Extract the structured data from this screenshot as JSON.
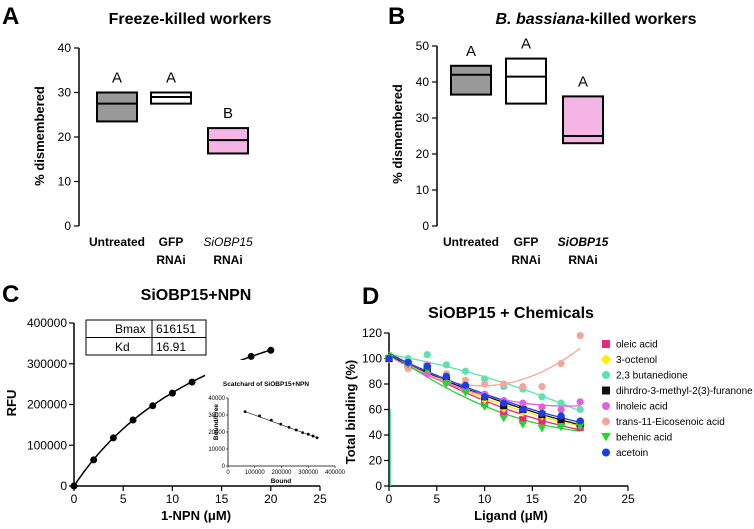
{
  "panels": {
    "a": "A",
    "b": "B",
    "c": "C",
    "d": "D"
  },
  "chart_data": [
    {
      "type": "box",
      "title": "Freeze-killed workers",
      "ylabel": "% dismembered",
      "ylim": [
        0,
        40
      ],
      "yticks": [
        "0",
        "10",
        "20",
        "30",
        "40"
      ],
      "categories": [
        {
          "l1": "Untreated",
          "l2": "",
          "italic": false
        },
        {
          "l1": "GFP",
          "l2": "RNAi",
          "italic": false
        },
        {
          "l1": "SiOBP15",
          "l2": "RNAi",
          "italic": true
        }
      ],
      "boxes": [
        {
          "q1": 23.5,
          "median": 27.5,
          "q3": 30,
          "color": "#999999",
          "letter": "A"
        },
        {
          "q1": 27.5,
          "median": 29,
          "q3": 30,
          "color": "#ffffff",
          "letter": "A"
        },
        {
          "q1": 16.3,
          "median": 19.3,
          "q3": 22,
          "color": "#f4b4e6",
          "letter": "B"
        }
      ]
    },
    {
      "type": "box",
      "title_italic": "B. bassiana",
      "title_rest": "-killed workers",
      "ylabel": "% dismembered",
      "ylim": [
        0,
        50
      ],
      "yticks": [
        "0",
        "10",
        "20",
        "30",
        "40",
        "50"
      ],
      "categories": [
        {
          "l1": "Untreated",
          "l2": "",
          "italic": false
        },
        {
          "l1": "GFP",
          "l2": "RNAi",
          "italic": false
        },
        {
          "l1": "SiOBP15",
          "l2": "RNAi",
          "italic": true
        }
      ],
      "boxes": [
        {
          "q1": 36.5,
          "median": 42,
          "q3": 44.5,
          "color": "#999999",
          "letter": "A"
        },
        {
          "q1": 34,
          "median": 41.5,
          "q3": 46.5,
          "color": "#ffffff",
          "letter": "A"
        },
        {
          "q1": 23,
          "median": 25,
          "q3": 36,
          "color": "#f4b4e6",
          "letter": "A"
        }
      ]
    },
    {
      "type": "line",
      "title": "SiOBP15+NPN",
      "xlabel": "1-NPN (μM)",
      "ylabel": "RFU",
      "xlim": [
        0,
        25
      ],
      "ylim": [
        0,
        400000
      ],
      "xticks": [
        "0",
        "5",
        "10",
        "15",
        "20",
        "25"
      ],
      "yticks": [
        "0",
        "100000",
        "200000",
        "300000",
        "400000"
      ],
      "x": [
        0,
        2,
        4,
        6,
        8,
        10,
        12,
        14,
        16,
        18,
        20
      ],
      "y": [
        0,
        64000,
        118000,
        162000,
        197000,
        228000,
        255000,
        279000,
        300000,
        318000,
        333000
      ],
      "table": [
        {
          "label": "Bmax",
          "value": "616151"
        },
        {
          "label": "Kd",
          "value": "16.91"
        }
      ],
      "inset": {
        "title": "Scatchard of SiOBP15+NPN",
        "xlabel": "Bound",
        "ylabel": "Bound/Free",
        "xlim": [
          0,
          400000
        ],
        "ylim": [
          0,
          40000
        ],
        "xticks": [
          "0",
          "100000",
          "200000",
          "300000",
          "400000"
        ],
        "yticks": [
          "0",
          "10000",
          "20000",
          "30000",
          "40000"
        ],
        "x": [
          64000,
          118000,
          162000,
          197000,
          228000,
          255000,
          279000,
          300000,
          318000,
          333000
        ],
        "y": [
          32000,
          29500,
          27000,
          24600,
          22800,
          21200,
          19600,
          18700,
          17600,
          16600
        ]
      }
    },
    {
      "type": "scatter",
      "title": "SiOBP15 + Chemicals",
      "xlabel": "Ligand (μM)",
      "ylabel": "Total binding (%)",
      "xlim": [
        0,
        25
      ],
      "ylim": [
        0,
        120
      ],
      "xticks": [
        "0",
        "5",
        "10",
        "15",
        "20",
        "25"
      ],
      "yticks": [
        "0",
        "20",
        "40",
        "60",
        "80",
        "100",
        "120"
      ],
      "x": [
        0,
        2,
        4,
        6,
        8,
        10,
        12,
        14,
        16,
        18,
        20
      ],
      "series": [
        {
          "name": "oleic acid",
          "color": "#e8287a",
          "marker": "square",
          "values": [
            100,
            96,
            94,
            83,
            76,
            65,
            57,
            52,
            51,
            49,
            46
          ]
        },
        {
          "name": "3-octenol",
          "color": "#ffee00",
          "marker": "diamond",
          "values": [
            100,
            96,
            92,
            82,
            75,
            68,
            61,
            58,
            55,
            50,
            48
          ]
        },
        {
          "name": "2,3 butanedione",
          "color": "#5ee0b0",
          "marker": "circle",
          "values": [
            100,
            100,
            103,
            95,
            90,
            84,
            78,
            76,
            70,
            65,
            60
          ]
        },
        {
          "name": "dihrdro-3-methyl-2(3)-furanone",
          "color": "#111111",
          "marker": "square",
          "values": [
            100,
            95,
            92,
            84,
            77,
            70,
            63,
            60,
            56,
            52,
            49
          ]
        },
        {
          "name": "linoleic acid",
          "color": "#e060e0",
          "marker": "circle",
          "values": [
            100,
            95,
            88,
            81,
            76,
            72,
            67,
            65,
            62,
            60,
            66
          ]
        },
        {
          "name": "trans-11-Eicosenoic acid",
          "color": "#f4a69a",
          "marker": "circle",
          "values": [
            100,
            92,
            95,
            88,
            83,
            80,
            80,
            78,
            78,
            96,
            118
          ]
        },
        {
          "name": "behenic acid",
          "color": "#22d633",
          "marker": "triangle-down",
          "values": [
            100,
            95,
            91,
            80,
            73,
            62,
            53,
            48,
            45,
            46,
            47
          ]
        },
        {
          "name": "acetoin",
          "color": "#1a3de8",
          "marker": "circle",
          "values": [
            100,
            97,
            94,
            86,
            79,
            70,
            65,
            60,
            57,
            55,
            51
          ]
        }
      ]
    }
  ]
}
